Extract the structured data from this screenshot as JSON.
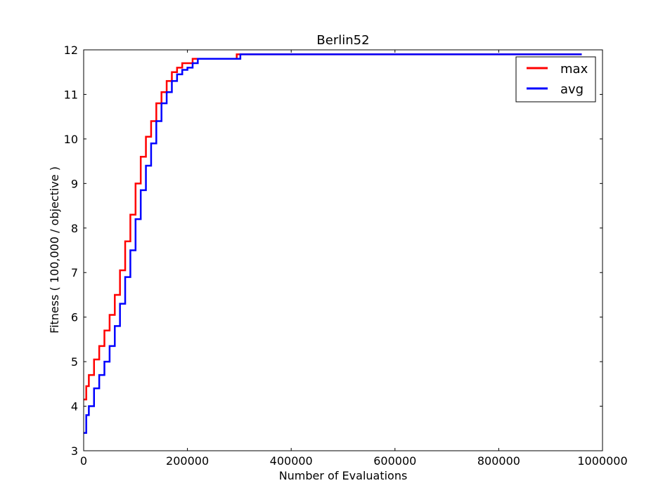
{
  "chart_data": {
    "type": "line",
    "title": "Berlin52",
    "xlabel": "Number of Evaluations",
    "ylabel": "Fitness ( 100,000 / objective )",
    "xlim": [
      0,
      1000000
    ],
    "ylim": [
      3,
      12
    ],
    "x_ticks": [
      0,
      200000,
      400000,
      600000,
      800000,
      1000000
    ],
    "x_tick_labels": [
      "0",
      "200000",
      "400000",
      "600000",
      "800000",
      "1000000"
    ],
    "y_ticks": [
      3,
      4,
      5,
      6,
      7,
      8,
      9,
      10,
      11,
      12
    ],
    "y_tick_labels": [
      "3",
      "4",
      "5",
      "6",
      "7",
      "8",
      "9",
      "10",
      "11",
      "12"
    ],
    "grid": false,
    "legend_position": "top-right",
    "series": [
      {
        "name": "max",
        "color": "#ff0000",
        "points": [
          [
            0,
            4.15
          ],
          [
            5000,
            4.45
          ],
          [
            10000,
            4.7
          ],
          [
            20000,
            5.05
          ],
          [
            30000,
            5.35
          ],
          [
            40000,
            5.7
          ],
          [
            50000,
            6.05
          ],
          [
            60000,
            6.5
          ],
          [
            70000,
            7.05
          ],
          [
            80000,
            7.7
          ],
          [
            90000,
            8.3
          ],
          [
            100000,
            9.0
          ],
          [
            110000,
            9.6
          ],
          [
            120000,
            10.05
          ],
          [
            130000,
            10.4
          ],
          [
            140000,
            10.8
          ],
          [
            150000,
            11.05
          ],
          [
            160000,
            11.3
          ],
          [
            170000,
            11.5
          ],
          [
            180000,
            11.6
          ],
          [
            190000,
            11.7
          ],
          [
            200000,
            11.7
          ],
          [
            210000,
            11.8
          ],
          [
            250000,
            11.8
          ],
          [
            290000,
            11.8
          ],
          [
            295000,
            11.9
          ],
          [
            400000,
            11.9
          ],
          [
            600000,
            11.9
          ],
          [
            800000,
            11.9
          ],
          [
            960000,
            11.9
          ]
        ]
      },
      {
        "name": "avg",
        "color": "#0000ff",
        "points": [
          [
            0,
            3.4
          ],
          [
            5000,
            3.8
          ],
          [
            10000,
            4.0
          ],
          [
            20000,
            4.4
          ],
          [
            30000,
            4.7
          ],
          [
            40000,
            5.0
          ],
          [
            50000,
            5.35
          ],
          [
            60000,
            5.8
          ],
          [
            70000,
            6.3
          ],
          [
            80000,
            6.9
          ],
          [
            90000,
            7.5
          ],
          [
            100000,
            8.2
          ],
          [
            110000,
            8.85
          ],
          [
            120000,
            9.4
          ],
          [
            130000,
            9.9
          ],
          [
            140000,
            10.4
          ],
          [
            150000,
            10.8
          ],
          [
            160000,
            11.05
          ],
          [
            170000,
            11.3
          ],
          [
            180000,
            11.45
          ],
          [
            190000,
            11.55
          ],
          [
            200000,
            11.6
          ],
          [
            210000,
            11.7
          ],
          [
            220000,
            11.8
          ],
          [
            260000,
            11.8
          ],
          [
            300000,
            11.8
          ],
          [
            302000,
            11.9
          ],
          [
            400000,
            11.9
          ],
          [
            600000,
            11.9
          ],
          [
            800000,
            11.9
          ],
          [
            960000,
            11.9
          ]
        ]
      }
    ]
  }
}
